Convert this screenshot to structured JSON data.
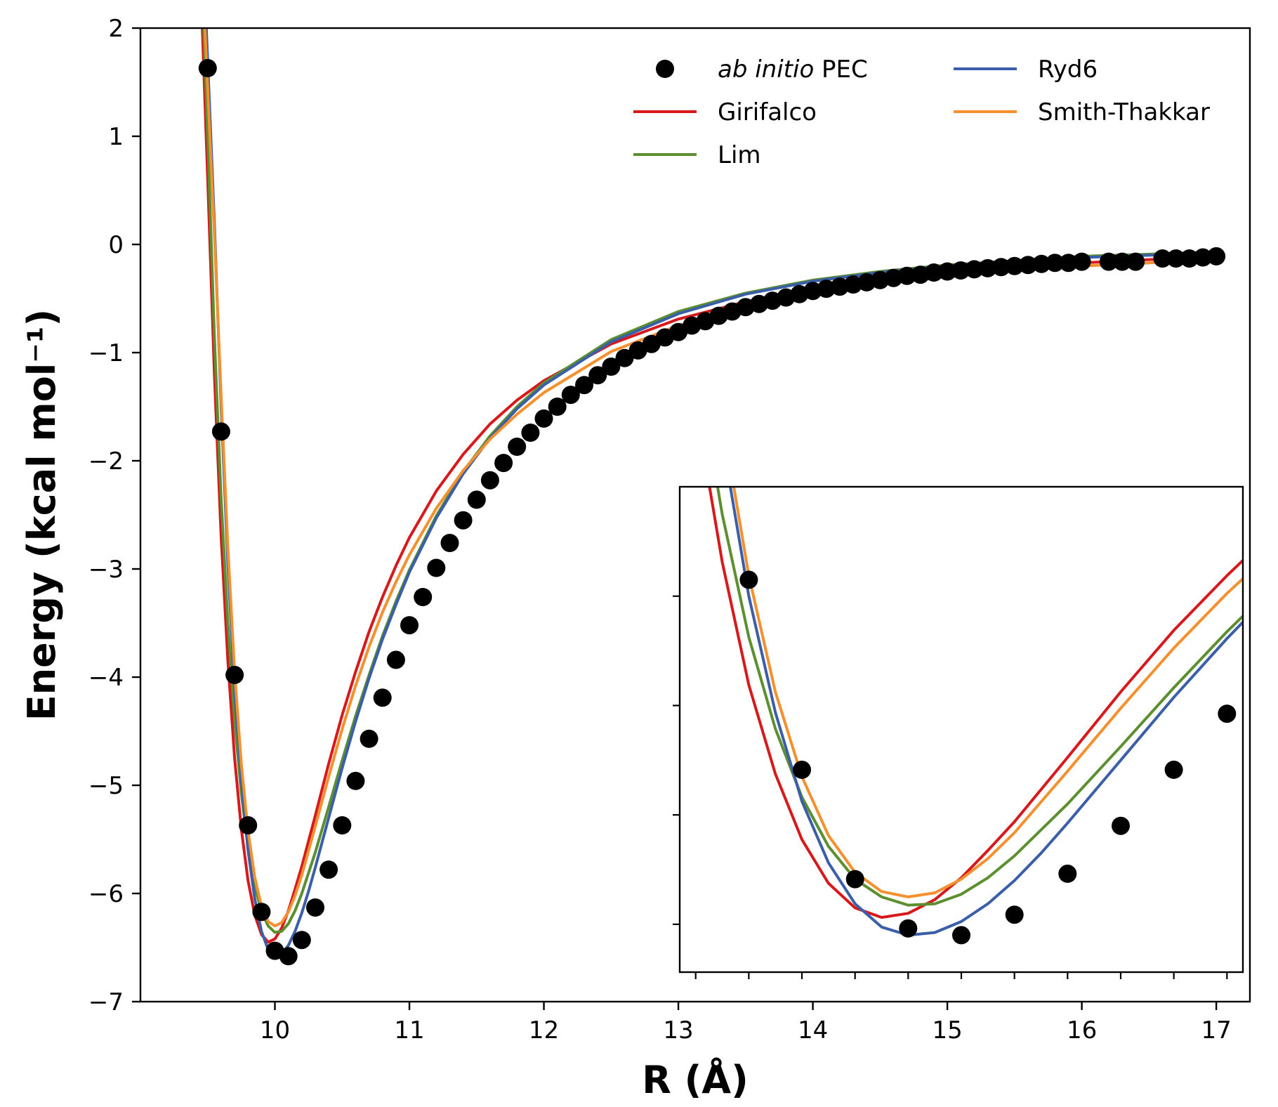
{
  "chart_data": {
    "type": "line",
    "title": "",
    "xlabel": "R (Å)",
    "ylabel": "Energy (kcal mol⁻¹)",
    "xlim": [
      9.0,
      17.25
    ],
    "ylim": [
      -7,
      2
    ],
    "xticks": [
      10,
      11,
      12,
      13,
      14,
      15,
      16,
      17
    ],
    "yticks": [
      2,
      1,
      0,
      -1,
      -2,
      -3,
      -4,
      -5,
      -6,
      -7
    ],
    "xtick_labels": [
      "10",
      "11",
      "12",
      "13",
      "14",
      "15",
      "16",
      "17"
    ],
    "ytick_labels": [
      "2",
      "1",
      "0",
      "−1",
      "−2",
      "−3",
      "−4",
      "−5",
      "−6",
      "−7"
    ],
    "legend_position": "top-right",
    "legend": [
      {
        "key": "abinitio",
        "prefix": "ab initio",
        "suffix": " PEC",
        "marker": "circle",
        "color": "#000000"
      },
      {
        "key": "girifalco",
        "label": "Girifalco",
        "marker": "line",
        "color": "#d7191c"
      },
      {
        "key": "lim",
        "label": "Lim",
        "marker": "line",
        "color": "#5b8f2f"
      },
      {
        "key": "ryd6",
        "label": "Ryd6",
        "marker": "line",
        "color": "#3a5fa8"
      },
      {
        "key": "smith",
        "label": "Smith-Thakkar",
        "marker": "line",
        "color": "#f5902e"
      }
    ],
    "scatter": {
      "name": "ab initio PEC",
      "color": "#000000",
      "x": [
        9.5,
        9.6,
        9.7,
        9.8,
        9.9,
        10.0,
        10.1,
        10.2,
        10.3,
        10.4,
        10.5,
        10.6,
        10.7,
        10.8,
        10.9,
        11.0,
        11.1,
        11.2,
        11.3,
        11.4,
        11.5,
        11.6,
        11.7,
        11.8,
        11.9,
        12.0,
        12.1,
        12.2,
        12.3,
        12.4,
        12.5,
        12.6,
        12.7,
        12.8,
        12.9,
        13.0,
        13.1,
        13.2,
        13.3,
        13.4,
        13.5,
        13.6,
        13.7,
        13.8,
        13.9,
        14.0,
        14.1,
        14.2,
        14.3,
        14.4,
        14.5,
        14.6,
        14.7,
        14.8,
        14.9,
        15.0,
        15.1,
        15.2,
        15.3,
        15.4,
        15.5,
        15.6,
        15.7,
        15.8,
        15.9,
        16.0,
        16.2,
        16.3,
        16.4,
        16.6,
        16.7,
        16.8,
        16.9,
        17.0
      ],
      "y": [
        1.63,
        -1.73,
        -3.98,
        -5.37,
        -6.17,
        -6.53,
        -6.58,
        -6.43,
        -6.13,
        -5.78,
        -5.37,
        -4.96,
        -4.57,
        -4.19,
        -3.84,
        -3.52,
        -3.26,
        -2.99,
        -2.76,
        -2.55,
        -2.36,
        -2.18,
        -2.02,
        -1.87,
        -1.74,
        -1.61,
        -1.5,
        -1.39,
        -1.3,
        -1.21,
        -1.13,
        -1.05,
        -0.98,
        -0.92,
        -0.86,
        -0.81,
        -0.75,
        -0.71,
        -0.66,
        -0.62,
        -0.58,
        -0.55,
        -0.52,
        -0.49,
        -0.46,
        -0.43,
        -0.41,
        -0.39,
        -0.37,
        -0.35,
        -0.33,
        -0.31,
        -0.29,
        -0.28,
        -0.26,
        -0.25,
        -0.24,
        -0.23,
        -0.22,
        -0.21,
        -0.2,
        -0.19,
        -0.18,
        -0.17,
        -0.17,
        -0.16,
        -0.16,
        -0.16,
        -0.16,
        -0.13,
        -0.13,
        -0.13,
        -0.12,
        -0.11
      ]
    },
    "series": [
      {
        "key": "girifalco",
        "name": "Girifalco",
        "color": "#d7191c",
        "x": [
          9.46,
          9.5,
          9.55,
          9.6,
          9.65,
          9.7,
          9.75,
          9.8,
          9.85,
          9.9,
          9.95,
          10.0,
          10.05,
          10.1,
          10.15,
          10.2,
          10.3,
          10.4,
          10.5,
          10.6,
          10.7,
          10.8,
          10.9,
          11.0,
          11.2,
          11.4,
          11.6,
          11.8,
          12.0,
          12.5,
          13.0,
          13.5,
          14.0,
          14.5,
          15.0,
          15.5,
          16.0,
          16.5,
          17.0
        ],
        "y": [
          2.0,
          0.6,
          -1.2,
          -2.7,
          -3.85,
          -4.75,
          -5.4,
          -5.88,
          -6.2,
          -6.38,
          -6.45,
          -6.42,
          -6.32,
          -6.16,
          -5.96,
          -5.75,
          -5.28,
          -4.8,
          -4.35,
          -3.95,
          -3.58,
          -3.26,
          -2.97,
          -2.71,
          -2.28,
          -1.94,
          -1.66,
          -1.44,
          -1.26,
          -0.92,
          -0.69,
          -0.53,
          -0.42,
          -0.33,
          -0.26,
          -0.21,
          -0.17,
          -0.14,
          -0.12
        ]
      },
      {
        "key": "lim",
        "name": "Lim",
        "color": "#5b8f2f",
        "x": [
          9.47,
          9.5,
          9.55,
          9.6,
          9.65,
          9.7,
          9.75,
          9.8,
          9.85,
          9.9,
          9.95,
          10.0,
          10.05,
          10.1,
          10.15,
          10.2,
          10.3,
          10.4,
          10.5,
          10.6,
          10.7,
          10.8,
          10.9,
          11.0,
          11.2,
          11.4,
          11.6,
          11.8,
          12.0,
          12.5,
          13.0,
          13.5,
          14.0,
          14.5,
          15.0,
          15.5,
          16.0,
          16.5,
          17.0
        ],
        "y": [
          2.0,
          1.0,
          -0.85,
          -2.35,
          -3.5,
          -4.4,
          -5.07,
          -5.57,
          -5.93,
          -6.17,
          -6.3,
          -6.36,
          -6.35,
          -6.28,
          -6.16,
          -6.0,
          -5.62,
          -5.2,
          -4.77,
          -4.36,
          -3.98,
          -3.62,
          -3.3,
          -3.01,
          -2.51,
          -2.1,
          -1.77,
          -1.5,
          -1.28,
          -0.88,
          -0.62,
          -0.45,
          -0.33,
          -0.25,
          -0.19,
          -0.15,
          -0.11,
          -0.09,
          -0.07
        ]
      },
      {
        "key": "ryd6",
        "name": "Ryd6",
        "color": "#3a5fa8",
        "x": [
          9.49,
          9.52,
          9.55,
          9.6,
          9.65,
          9.7,
          9.75,
          9.8,
          9.85,
          9.9,
          9.95,
          10.0,
          10.05,
          10.1,
          10.15,
          10.2,
          10.25,
          10.3,
          10.4,
          10.5,
          10.6,
          10.7,
          10.8,
          10.9,
          11.0,
          11.2,
          11.4,
          11.6,
          11.8,
          12.0,
          12.5,
          13.0,
          13.5,
          14.0,
          14.5,
          15.0,
          15.5,
          16.0,
          16.5,
          17.0
        ],
        "y": [
          2.0,
          1.1,
          0.2,
          -1.5,
          -2.95,
          -4.1,
          -4.95,
          -5.6,
          -6.05,
          -6.35,
          -6.52,
          -6.58,
          -6.56,
          -6.48,
          -6.35,
          -6.18,
          -5.98,
          -5.76,
          -5.3,
          -4.84,
          -4.41,
          -4.01,
          -3.65,
          -3.33,
          -3.03,
          -2.53,
          -2.12,
          -1.79,
          -1.52,
          -1.3,
          -0.9,
          -0.64,
          -0.46,
          -0.34,
          -0.26,
          -0.2,
          -0.15,
          -0.12,
          -0.1,
          -0.08
        ]
      },
      {
        "key": "smith",
        "name": "Smith-Thakkar",
        "color": "#f5902e",
        "x": [
          9.48,
          9.52,
          9.55,
          9.6,
          9.65,
          9.7,
          9.75,
          9.8,
          9.85,
          9.9,
          9.95,
          10.0,
          10.05,
          10.1,
          10.15,
          10.2,
          10.3,
          10.4,
          10.5,
          10.6,
          10.7,
          10.8,
          10.9,
          11.0,
          11.2,
          11.4,
          11.6,
          11.8,
          12.0,
          12.5,
          13.0,
          13.5,
          14.0,
          14.5,
          15.0,
          15.5,
          16.0,
          16.5,
          17.0
        ],
        "y": [
          2.0,
          0.9,
          0.1,
          -1.4,
          -2.8,
          -3.95,
          -4.8,
          -5.42,
          -5.85,
          -6.12,
          -6.26,
          -6.3,
          -6.27,
          -6.17,
          -6.02,
          -5.83,
          -5.38,
          -4.92,
          -4.48,
          -4.08,
          -3.72,
          -3.4,
          -3.12,
          -2.87,
          -2.44,
          -2.09,
          -1.8,
          -1.57,
          -1.37,
          -0.99,
          -0.75,
          -0.58,
          -0.46,
          -0.37,
          -0.3,
          -0.24,
          -0.2,
          -0.17,
          -0.14
        ]
      }
    ],
    "inset": {
      "xlim": [
        9.57,
        10.63
      ],
      "ylim": [
        -6.85,
        -3.3
      ],
      "xticks": [
        9.6,
        9.7,
        9.8,
        9.9,
        10.0,
        10.1,
        10.2,
        10.3,
        10.4,
        10.5,
        10.6
      ],
      "yticks": [
        -6.5,
        -5.7,
        -4.9,
        -4.1
      ],
      "tick_labels_shown": false
    }
  }
}
